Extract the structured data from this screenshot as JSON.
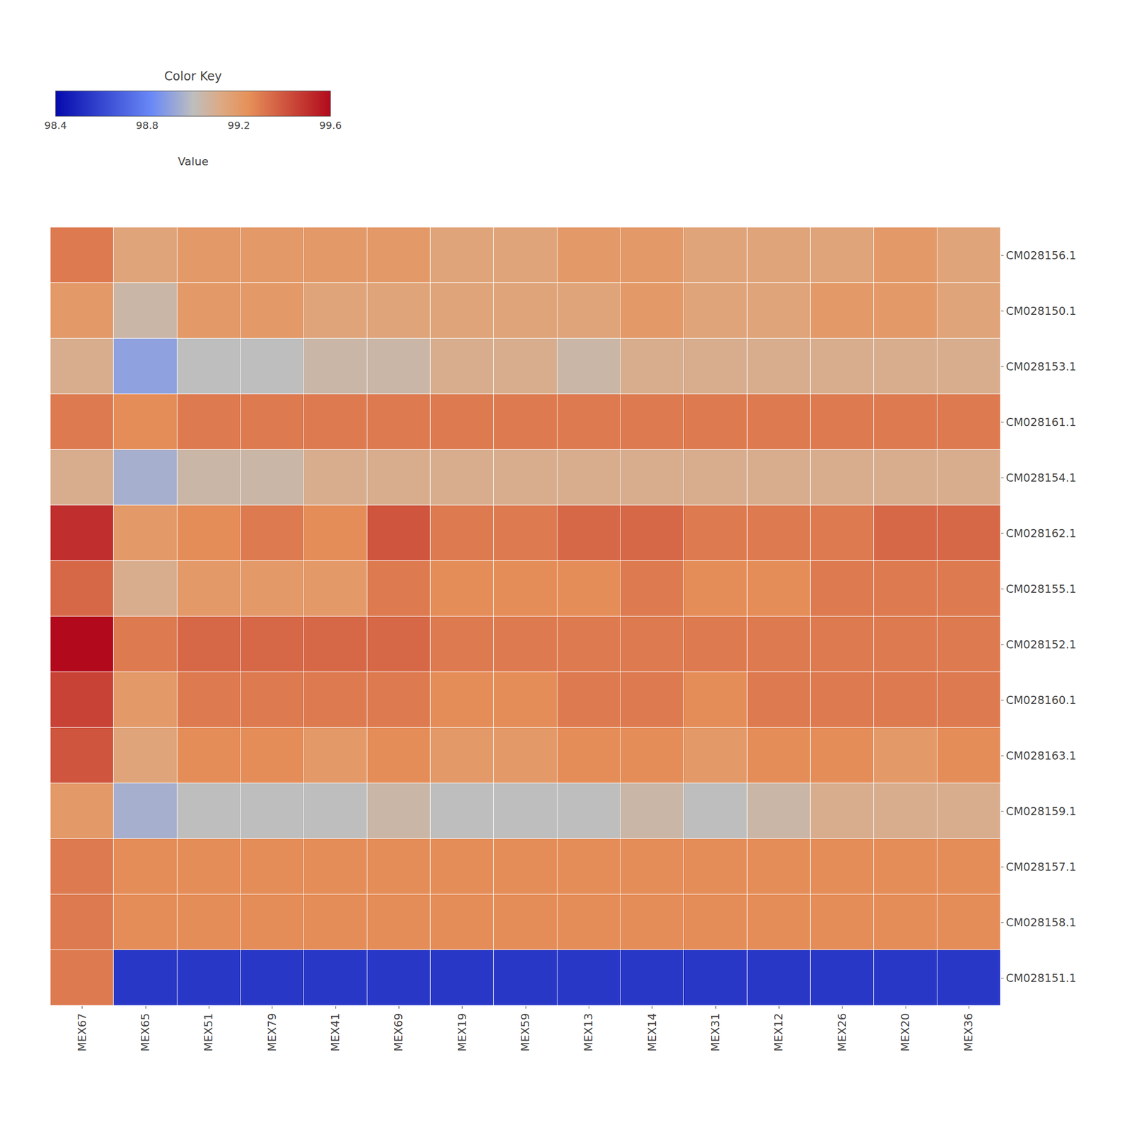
{
  "chart_data": {
    "type": "heatmap",
    "columns": [
      "MEX67",
      "MEX65",
      "MEX51",
      "MEX79",
      "MEX41",
      "MEX69",
      "MEX19",
      "MEX59",
      "MEX13",
      "MEX14",
      "MEX31",
      "MEX12",
      "MEX26",
      "MEX20",
      "MEX36"
    ],
    "rows": [
      "CM028156.1",
      "CM028150.1",
      "CM028153.1",
      "CM028161.1",
      "CM028154.1",
      "CM028162.1",
      "CM028155.1",
      "CM028152.1",
      "CM028160.1",
      "CM028163.1",
      "CM028159.1",
      "CM028157.1",
      "CM028158.1",
      "CM028151.1"
    ],
    "values": [
      [
        99.3,
        99.15,
        99.2,
        99.2,
        99.2,
        99.2,
        99.15,
        99.15,
        99.2,
        99.2,
        99.15,
        99.15,
        99.15,
        99.2,
        99.15
      ],
      [
        99.2,
        99.05,
        99.2,
        99.2,
        99.15,
        99.15,
        99.15,
        99.15,
        99.15,
        99.2,
        99.15,
        99.15,
        99.2,
        99.2,
        99.15
      ],
      [
        99.1,
        98.9,
        99.0,
        99.0,
        99.05,
        99.05,
        99.1,
        99.1,
        99.05,
        99.1,
        99.1,
        99.1,
        99.1,
        99.1,
        99.1
      ],
      [
        99.3,
        99.25,
        99.3,
        99.3,
        99.3,
        99.3,
        99.3,
        99.3,
        99.3,
        99.3,
        99.3,
        99.3,
        99.3,
        99.3,
        99.3
      ],
      [
        99.1,
        98.95,
        99.05,
        99.05,
        99.1,
        99.1,
        99.1,
        99.1,
        99.1,
        99.1,
        99.1,
        99.1,
        99.1,
        99.1,
        99.1
      ],
      [
        99.5,
        99.2,
        99.25,
        99.3,
        99.25,
        99.4,
        99.3,
        99.3,
        99.35,
        99.35,
        99.3,
        99.3,
        99.3,
        99.35,
        99.35
      ],
      [
        99.35,
        99.1,
        99.2,
        99.2,
        99.2,
        99.3,
        99.25,
        99.25,
        99.25,
        99.3,
        99.25,
        99.25,
        99.3,
        99.3,
        99.3
      ],
      [
        99.6,
        99.3,
        99.35,
        99.35,
        99.35,
        99.35,
        99.3,
        99.3,
        99.3,
        99.3,
        99.3,
        99.3,
        99.3,
        99.3,
        99.3
      ],
      [
        99.45,
        99.2,
        99.3,
        99.3,
        99.3,
        99.3,
        99.25,
        99.25,
        99.3,
        99.3,
        99.25,
        99.3,
        99.3,
        99.3,
        99.3
      ],
      [
        99.4,
        99.15,
        99.25,
        99.25,
        99.2,
        99.25,
        99.2,
        99.2,
        99.25,
        99.25,
        99.2,
        99.25,
        99.25,
        99.2,
        99.25
      ],
      [
        99.2,
        98.95,
        99.0,
        99.0,
        99.0,
        99.05,
        99.0,
        99.0,
        99.0,
        99.05,
        99.0,
        99.05,
        99.1,
        99.1,
        99.1
      ],
      [
        99.3,
        99.25,
        99.25,
        99.25,
        99.25,
        99.25,
        99.25,
        99.25,
        99.25,
        99.25,
        99.25,
        99.25,
        99.25,
        99.25,
        99.25
      ],
      [
        99.3,
        99.25,
        99.25,
        99.25,
        99.25,
        99.25,
        99.25,
        99.25,
        99.25,
        99.25,
        99.25,
        99.25,
        99.25,
        99.25,
        99.25
      ],
      [
        99.3,
        98.55,
        98.55,
        98.55,
        98.55,
        98.55,
        98.55,
        98.55,
        98.55,
        98.55,
        98.55,
        98.55,
        98.55,
        98.55,
        98.55
      ]
    ],
    "color_range": [
      98.4,
      99.6
    ],
    "color_ticks": [
      98.4,
      98.8,
      99.2,
      99.6
    ],
    "colorbar_title": "Color Key",
    "colorbar_label": "Value"
  }
}
